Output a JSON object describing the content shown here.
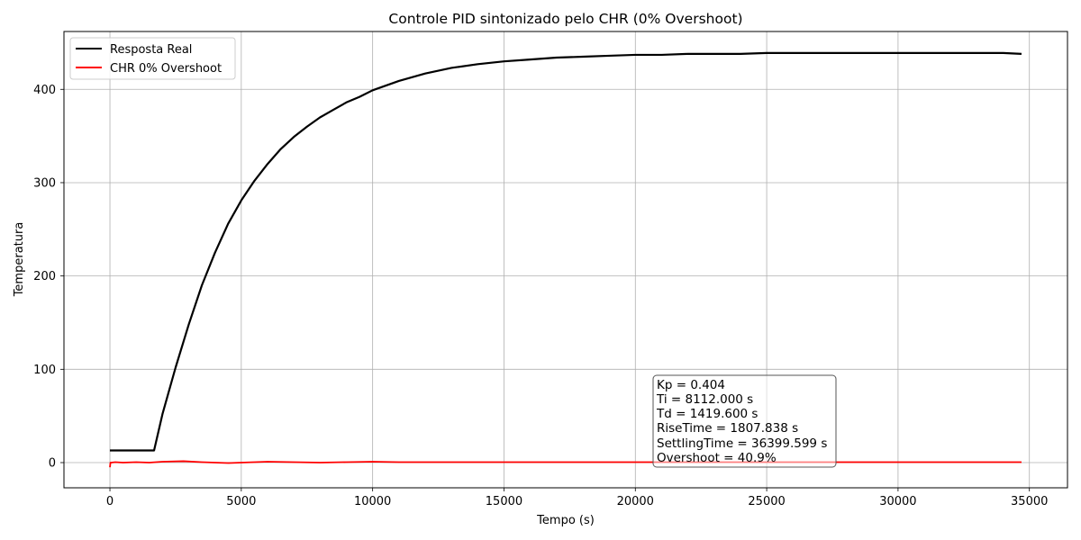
{
  "chart_data": {
    "type": "line",
    "title": "Controle PID sintonizado pelo CHR (0% Overshoot)",
    "xlabel": "Tempo (s)",
    "ylabel": "Temperatura",
    "xlim": [
      -1750,
      36450
    ],
    "ylim": [
      -27,
      462
    ],
    "xticks": [
      0,
      5000,
      10000,
      15000,
      20000,
      25000,
      30000,
      35000
    ],
    "xtick_labels": [
      "0",
      "5000",
      "10000",
      "15000",
      "20000",
      "25000",
      "30000",
      "35000"
    ],
    "yticks": [
      0,
      100,
      200,
      300,
      400
    ],
    "ytick_labels": [
      "0",
      "100",
      "200",
      "300",
      "400"
    ],
    "grid": true,
    "legend_position": "top-left",
    "series": [
      {
        "name": "Resposta Real",
        "color": "#000000",
        "x": [
          0,
          500,
          1000,
          1500,
          1680,
          2000,
          2500,
          3000,
          3500,
          4000,
          4500,
          5000,
          5500,
          6000,
          6500,
          7000,
          7500,
          8000,
          8500,
          9000,
          9500,
          10000,
          11000,
          12000,
          13000,
          14000,
          15000,
          16000,
          17000,
          18000,
          19000,
          20000,
          21000,
          22000,
          23000,
          24000,
          25000,
          26000,
          27000,
          28000,
          29000,
          30000,
          31000,
          32000,
          33000,
          34000,
          34700
        ],
        "y": [
          13,
          13,
          13,
          13,
          13,
          52,
          102,
          148,
          190,
          225,
          256,
          281,
          302,
          320,
          336,
          349,
          360,
          370,
          378,
          386,
          392,
          399,
          409,
          417,
          423,
          427,
          430,
          432,
          434,
          435,
          436,
          437,
          437,
          438,
          438,
          438,
          439,
          439,
          439,
          439,
          439,
          439,
          439,
          439,
          439,
          439,
          438
        ]
      },
      {
        "name": "CHR 0% Overshoot",
        "color": "#ff0000",
        "x": [
          0,
          20,
          50,
          200,
          500,
          1000,
          1500,
          2000,
          2800,
          3500,
          4500,
          5000,
          6000,
          7000,
          8000,
          9000,
          10000,
          11000,
          12000,
          14000,
          16000,
          18000,
          20000,
          22000,
          25000,
          28000,
          31000,
          34700
        ],
        "y": [
          -5,
          0,
          0,
          0.5,
          0,
          0.5,
          0,
          1,
          1.5,
          0.5,
          -0.5,
          0,
          1,
          0.5,
          0,
          0.5,
          1,
          0.5,
          0.5,
          0.5,
          0.5,
          0.5,
          0.5,
          0.5,
          0.5,
          0.5,
          0.5,
          0.5
        ]
      }
    ],
    "annotation_lines": [
      "Kp = 0.404",
      "Ti = 8112.000 s",
      "Td = 1419.600 s",
      "RiseTime = 1807.838 s",
      "SettlingTime = 36399.599 s",
      "Overshoot = 40.9%"
    ]
  }
}
